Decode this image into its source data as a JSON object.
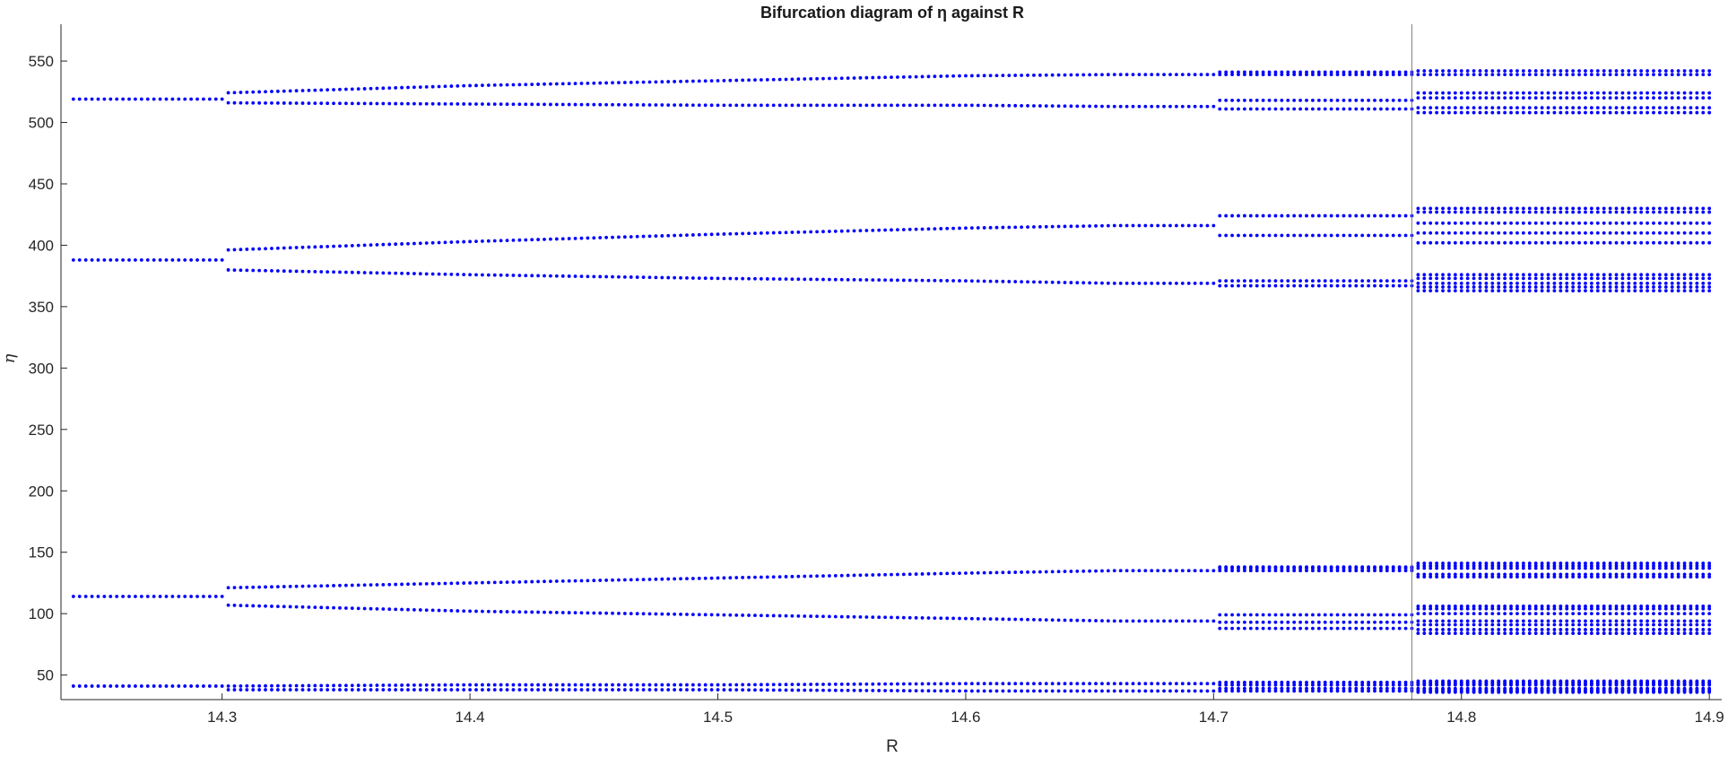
{
  "chart_data": {
    "type": "scatter",
    "title": "Bifurcation diagram of η against R",
    "xlabel": "R",
    "ylabel": "η",
    "xlim": [
      14.235,
      14.905
    ],
    "ylim": [
      30,
      580
    ],
    "xticks": [
      14.3,
      14.4,
      14.5,
      14.6,
      14.7,
      14.8,
      14.9
    ],
    "xtick_labels": [
      "14.3",
      "14.4",
      "14.5",
      "14.6",
      "14.7",
      "14.8",
      "14.9"
    ],
    "yticks": [
      50,
      100,
      150,
      200,
      250,
      300,
      350,
      400,
      450,
      500,
      550
    ],
    "ytick_labels": [
      "50",
      "100",
      "150",
      "200",
      "250",
      "300",
      "350",
      "400",
      "450",
      "500",
      "550"
    ],
    "marker_color": "#0000ff",
    "reference_line_color": "#808080",
    "reference_line_x": 14.78,
    "grid": false,
    "legend": "none",
    "x_step": 0.0025,
    "period_doubling_points": [
      14.283,
      14.66,
      14.78
    ],
    "series": [
      {
        "values_at_R": [
          {
            "R": 14.24,
            "eta": [
              41,
              114,
              388,
              519
            ]
          },
          {
            "R": 14.283,
            "eta": [
              41,
              114,
              388,
              519
            ]
          },
          {
            "R": 14.3,
            "eta": [
              38,
              41,
              107,
              121,
              380,
              396,
              516,
              524
            ]
          },
          {
            "R": 14.4,
            "eta": [
              38,
              42,
              102,
              125,
              376,
              403,
              515,
              530
            ]
          },
          {
            "R": 14.5,
            "eta": [
              38,
              42,
              99,
              129,
              373,
              409,
              514,
              534
            ]
          },
          {
            "R": 14.6,
            "eta": [
              37,
              43,
              96,
              133,
              371,
              414,
              514,
              538
            ]
          },
          {
            "R": 14.66,
            "eta": [
              37,
              43,
              94,
              135,
              369,
              416,
              513,
              539
            ]
          },
          {
            "R": 14.7,
            "eta": [
              37,
              39,
              42,
              44,
              88,
              93,
              99,
              135,
              137,
              138,
              367,
              371,
              408,
              424,
              511,
              518,
              539,
              541
            ]
          },
          {
            "R": 14.78,
            "eta": [
              36,
              37,
              38,
              39,
              42,
              43,
              44,
              45,
              84,
              87,
              91,
              94,
              100,
              104,
              106,
              130,
              132,
              137,
              139,
              141,
              363,
              366,
              369,
              373,
              376,
              402,
              410,
              418,
              427,
              430,
              508,
              512,
              520,
              524,
              539,
              542
            ]
          },
          {
            "R": 14.9,
            "eta": [
              34,
              36,
              37,
              39,
              40,
              42,
              43,
              45,
              46,
              47,
              78,
              85,
              90,
              95,
              100,
              106,
              112,
              118,
              124,
              130,
              135,
              140,
              145,
              360,
              368,
              376,
              384,
              392,
              400,
              408,
              416,
              424,
              432,
              442,
              505,
              512,
              519,
              526,
              533,
              540,
              547
            ]
          }
        ]
      }
    ]
  }
}
